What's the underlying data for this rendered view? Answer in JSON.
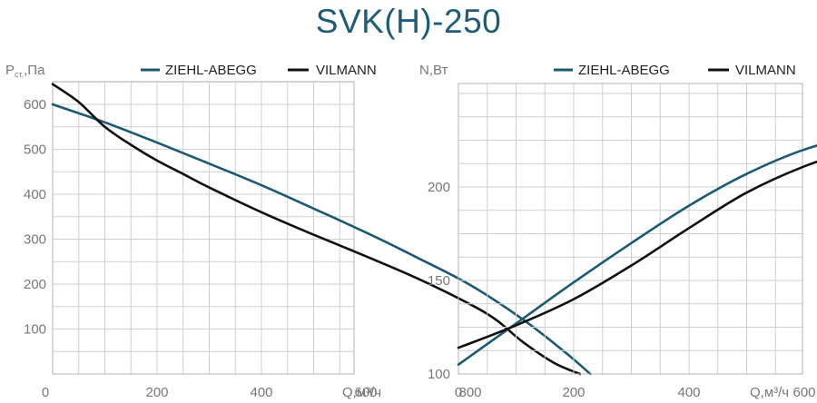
{
  "title": "SVK(H)-250",
  "colors": {
    "ziehl": "#1b5a73",
    "vilmann": "#111111",
    "grid": "#cfcfcf"
  },
  "chart_data": [
    {
      "type": "line",
      "ylabel": {
        "main": "P",
        "sub": "ст.",
        "rest": ",Па"
      },
      "xlabel": "Q,м³/ч",
      "xlim": [
        0,
        1100
      ],
      "ylim": [
        0,
        650
      ],
      "x_ticks": [
        "0",
        "200",
        "400",
        "600",
        "800"
      ],
      "y_ticks": [
        "100",
        "200",
        "300",
        "400",
        "500",
        "600"
      ],
      "grid": true,
      "legend": "top",
      "series": [
        {
          "name": "ZIEHL-ABEGG",
          "color": "#1b5a73",
          "x": [
            0,
            100,
            200,
            300,
            400,
            500,
            600,
            700,
            800,
            900,
            980,
            1030
          ],
          "y": [
            600,
            560,
            515,
            468,
            420,
            368,
            315,
            258,
            198,
            122,
            50,
            0
          ]
        },
        {
          "name": "VILMANN",
          "color": "#111111",
          "x": [
            0,
            50,
            100,
            150,
            200,
            250,
            300,
            400,
            500,
            600,
            700,
            800,
            850,
            900,
            960,
            1010
          ],
          "y": [
            645,
            605,
            550,
            510,
            475,
            445,
            415,
            360,
            310,
            262,
            212,
            155,
            120,
            72,
            25,
            0
          ]
        }
      ]
    },
    {
      "type": "line",
      "ylabel": {
        "main": "N,Вт",
        "sub": "",
        "rest": ""
      },
      "xlabel": "Q,м³/ч",
      "xlim": [
        0,
        1100
      ],
      "ylim": [
        100,
        250
      ],
      "x_ticks": [
        "0",
        "200",
        "400",
        "600",
        "800"
      ],
      "y_ticks": [
        "100",
        "150",
        "200"
      ],
      "grid": true,
      "legend": "top",
      "series": [
        {
          "name": "ZIEHL-ABEGG",
          "color": "#1b5a73",
          "x": [
            0,
            100,
            200,
            300,
            400,
            500,
            600,
            700,
            750,
            800,
            900,
            1000,
            1070
          ],
          "y": [
            105,
            127,
            149,
            170,
            190,
            207,
            220,
            228,
            229,
            227,
            214,
            199,
            190
          ]
        },
        {
          "name": "VILMANN",
          "color": "#111111",
          "x": [
            0,
            100,
            200,
            300,
            400,
            500,
            600,
            700,
            750,
            800,
            900,
            1000,
            1050
          ],
          "y": [
            114,
            126,
            140,
            158,
            178,
            197,
            211,
            221,
            223,
            220,
            207,
            193,
            189
          ]
        }
      ]
    }
  ]
}
